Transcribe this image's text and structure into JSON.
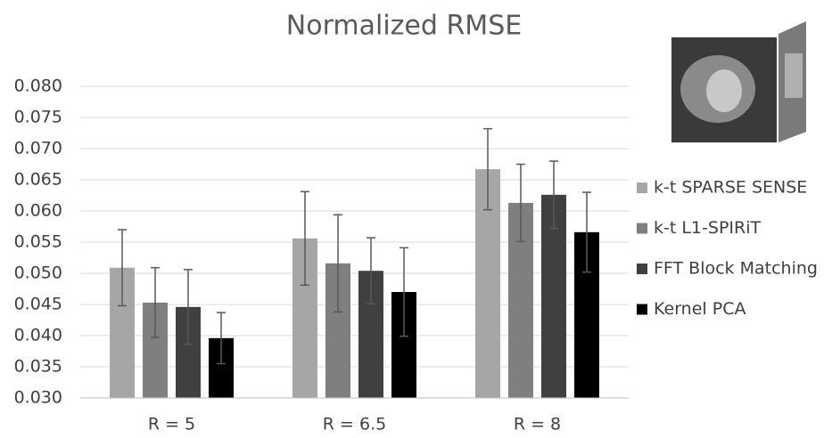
{
  "chart_data": {
    "type": "bar",
    "title": "Normalized RMSE",
    "categories": [
      "R = 5",
      "R = 6.5",
      "R = 8"
    ],
    "series": [
      {
        "name": "k-t SPARSE SENSE",
        "color": "#a6a6a6",
        "values": [
          0.0509,
          0.0556,
          0.0667
        ],
        "errors": [
          0.0061,
          0.0075,
          0.0065
        ]
      },
      {
        "name": "k-t L1-SPIRiT",
        "color": "#7f7f7f",
        "values": [
          0.0453,
          0.0516,
          0.0613
        ],
        "errors": [
          0.0056,
          0.0078,
          0.0062
        ]
      },
      {
        "name": "FFT Block Matching",
        "color": "#404040",
        "values": [
          0.0446,
          0.0504,
          0.0626
        ],
        "errors": [
          0.006,
          0.0053,
          0.0054
        ]
      },
      {
        "name": "Kernel PCA",
        "color": "#000000",
        "values": [
          0.0396,
          0.047,
          0.0566
        ],
        "errors": [
          0.0041,
          0.0071,
          0.0064
        ]
      }
    ],
    "ylim": [
      0.03,
      0.08
    ],
    "yticks": [
      {
        "value": 0.03,
        "label": "0.030"
      },
      {
        "value": 0.035,
        "label": "0.035"
      },
      {
        "value": 0.04,
        "label": "0.040"
      },
      {
        "value": 0.045,
        "label": "0.045"
      },
      {
        "value": 0.05,
        "label": "0.050"
      },
      {
        "value": 0.055,
        "label": "0.055"
      },
      {
        "value": 0.06,
        "label": "0.060"
      },
      {
        "value": 0.065,
        "label": "0.065"
      },
      {
        "value": 0.07,
        "label": "0.070"
      },
      {
        "value": 0.075,
        "label": "0.075"
      },
      {
        "value": 0.08,
        "label": "0.080"
      }
    ],
    "grid": true,
    "legend": "right"
  }
}
